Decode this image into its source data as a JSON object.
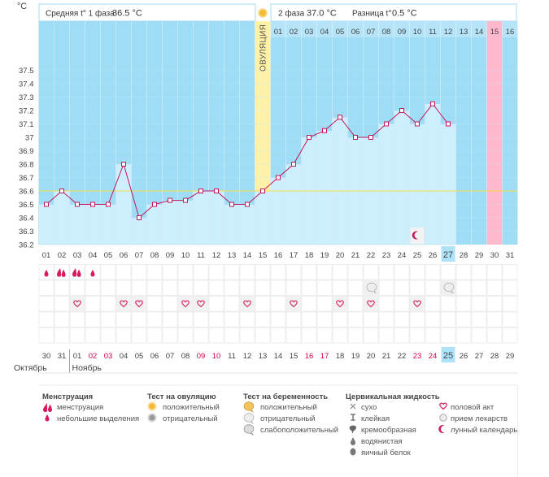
{
  "header": {
    "unit": "°C",
    "phase1_label": "Средняя t° 1 фаза",
    "phase1_value": "36.5 °C",
    "phase2_label": "2 фаза",
    "phase2_value": "37.0 °C",
    "diff_label": "Разница t°",
    "diff_value": "0.5 °C"
  },
  "ovulation_label": "ОВУЛЯЦИЯ",
  "colors": {
    "sky": "#9fdcf5",
    "bar": "#cdeefc",
    "line": "#c2185b",
    "ovulation": "#fff2a8",
    "period": "#ffb8cc",
    "today": "#aee2f8",
    "weekend": "#d6004e"
  },
  "chart_data": {
    "type": "line",
    "title": "",
    "ylabel": "°C",
    "ylim": [
      36.2,
      37.5
    ],
    "yticks": [
      "36.2",
      "36.3",
      "36.4",
      "36.5",
      "36.6",
      "36.7",
      "36.8",
      "36.9",
      "37",
      "37.1",
      "37.2",
      "37.3",
      "37.4",
      "37.5"
    ],
    "coverline": 36.6,
    "dates": [
      "01",
      "02",
      "03",
      "04",
      "05",
      "06",
      "07",
      "08",
      "09",
      "10",
      "11",
      "12",
      "13",
      "14",
      "15",
      "16",
      "17",
      "18",
      "19",
      "20",
      "21",
      "22",
      "23",
      "24",
      "25",
      "26",
      "27",
      "28",
      "29",
      "30",
      "31"
    ],
    "cycle_days": [
      "30",
      "31",
      "01",
      "02",
      "03",
      "04",
      "05",
      "06",
      "07",
      "08",
      "09",
      "10",
      "11",
      "12",
      "13",
      "14",
      "15",
      "16",
      "17",
      "18",
      "19",
      "20",
      "21",
      "22",
      "23",
      "24",
      "25",
      "26",
      "27",
      "28",
      "29"
    ],
    "weekend_cycle_idx": [
      3,
      4,
      10,
      11,
      17,
      18,
      24,
      25
    ],
    "today_idx": 26,
    "luteal_days": [
      "01",
      "02",
      "03",
      "04",
      "05",
      "06",
      "07",
      "08",
      "09",
      "10",
      "11",
      "12",
      "13",
      "14",
      "15",
      "16"
    ],
    "luteal_start_idx": 15,
    "ovulation_idx": 14,
    "period_idx": 29,
    "series": [
      {
        "name": "Базальная температура",
        "values": [
          36.5,
          36.6,
          36.5,
          36.5,
          36.5,
          36.8,
          36.4,
          36.5,
          36.53,
          36.53,
          36.6,
          36.6,
          36.5,
          36.5,
          36.6,
          36.7,
          36.8,
          37.0,
          37.05,
          37.15,
          37.0,
          37.0,
          37.1,
          37.2,
          37.1,
          37.25,
          37.1,
          null,
          null,
          null,
          null
        ]
      }
    ],
    "moon_idx": 24,
    "months": [
      "Октябрь",
      "Ноябрь"
    ],
    "menstruation_row": [
      {
        "idx": 0,
        "type": "light"
      },
      {
        "idx": 1,
        "type": "heavy"
      },
      {
        "idx": 2,
        "type": "heavy"
      },
      {
        "idx": 3,
        "type": "light"
      }
    ],
    "pregnancy_test_idx": [
      21,
      26
    ],
    "intercourse_idx": [
      2,
      5,
      6,
      9,
      10,
      13,
      16,
      19,
      21,
      24
    ]
  },
  "legend": {
    "menstruation": {
      "title": "Менструация",
      "items": [
        "менструация",
        "небольшие выделения"
      ]
    },
    "ovulation_test": {
      "title": "Тест на овуляцию",
      "items": [
        "положительный",
        "отрицательный"
      ]
    },
    "pregnancy_test": {
      "title": "Тест на беременность",
      "items": [
        "положительный",
        "отрицательный",
        "слабоположительный"
      ]
    },
    "cervical": {
      "title": "Цервикальная жидкость",
      "items": [
        "сухо",
        "клейкая",
        "кремообразная",
        "водянистая",
        "яичный белок"
      ]
    },
    "other": {
      "items": [
        "половой акт",
        "прием лекарств",
        "лунный календарь"
      ]
    }
  }
}
